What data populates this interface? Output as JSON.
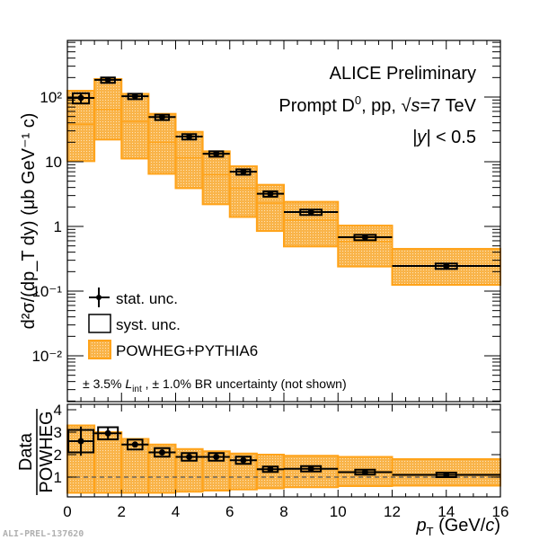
{
  "chart_data": [
    {
      "type": "scatter",
      "panel": "top",
      "title": "",
      "annotations": [
        "ALICE Preliminary",
        "Prompt D0, pp, √s=7 TeV",
        "|y| < 0.5",
        "± 3.5% L_int , ± 1.0% BR uncertainty (not shown)"
      ],
      "xlabel": "p_T (GeV/c)",
      "ylabel": "d²σ/(dp_T dy) (μb GeV⁻¹ c)",
      "yscale": "log",
      "xlim": [
        0,
        16
      ],
      "ylim": [
        0.003,
        700
      ],
      "ytick_labels": [
        "10⁻²",
        "10⁻¹",
        "1",
        "10",
        "10²"
      ],
      "ytick_values": [
        0.01,
        0.1,
        1,
        10,
        100
      ],
      "legend": {
        "placement": "bottom-left",
        "entries": [
          "stat. unc.",
          "syst. unc.",
          "POWHEG+PYTHIA6"
        ]
      },
      "bins": [
        [
          0,
          1
        ],
        [
          1,
          2
        ],
        [
          2,
          3
        ],
        [
          3,
          4
        ],
        [
          4,
          5
        ],
        [
          5,
          6
        ],
        [
          6,
          7
        ],
        [
          7,
          8
        ],
        [
          8,
          10
        ],
        [
          10,
          12
        ],
        [
          12,
          16
        ]
      ],
      "series": [
        {
          "name": "Data",
          "x": [
            0.5,
            1.5,
            2.5,
            3.5,
            4.5,
            5.5,
            6.5,
            7.5,
            9,
            11,
            14
          ],
          "values": [
            97,
            184,
            103,
            49,
            24.5,
            13.3,
            7.0,
            3.2,
            1.67,
            0.68,
            0.245
          ],
          "stat_rel": [
            0.17,
            0.04,
            0.03,
            0.03,
            0.03,
            0.03,
            0.03,
            0.04,
            0.04,
            0.05,
            0.08
          ],
          "syst_rel": [
            0.18,
            0.09,
            0.09,
            0.09,
            0.09,
            0.09,
            0.09,
            0.09,
            0.09,
            0.09,
            0.09
          ]
        },
        {
          "name": "POWHEG+PYTHIA6",
          "central": [
            38,
            64,
            42,
            20,
            11.5,
            6.3,
            3.9,
            2.3,
            1.25,
            0.58,
            0.245
          ],
          "upper": [
            125,
            190,
            112,
            55,
            29,
            14.5,
            8.5,
            4.4,
            2.4,
            1.03,
            0.45
          ],
          "lower": [
            10.2,
            22,
            11.2,
            6.5,
            3.9,
            2.2,
            1.4,
            0.85,
            0.49,
            0.24,
            0.125
          ]
        }
      ]
    },
    {
      "type": "scatter",
      "panel": "bottom",
      "xlabel": "p_T (GeV/c)",
      "ylabel": "Data / POWHEG",
      "xlim": [
        0,
        16
      ],
      "ylim": [
        0.1,
        4.2
      ],
      "xtick_labels": [
        "0",
        "2",
        "4",
        "6",
        "8",
        "10",
        "12",
        "14",
        "16"
      ],
      "ytick_labels": [
        "1",
        "2",
        "3",
        "4"
      ],
      "reference_line": 1,
      "series": [
        {
          "name": "Data/POWHEG",
          "x": [
            0.5,
            1.5,
            2.5,
            3.5,
            4.5,
            5.5,
            6.5,
            7.5,
            9,
            11,
            14
          ],
          "values": [
            2.6,
            2.95,
            2.45,
            2.1,
            1.9,
            1.9,
            1.75,
            1.35,
            1.37,
            1.22,
            1.1
          ],
          "stat_err": [
            0.65,
            0.25,
            0.12,
            0.1,
            0.08,
            0.08,
            0.07,
            0.05,
            0.05,
            0.05,
            0.07
          ],
          "syst_err": [
            0.5,
            0.27,
            0.22,
            0.19,
            0.17,
            0.17,
            0.16,
            0.12,
            0.12,
            0.11,
            0.1
          ]
        },
        {
          "name": "POWHEG band",
          "upper": [
            3.3,
            3.0,
            2.7,
            2.45,
            2.25,
            2.15,
            2.05,
            2.0,
            1.95,
            1.9,
            1.8
          ],
          "lower": [
            0.3,
            0.3,
            0.3,
            0.3,
            0.35,
            0.4,
            0.45,
            0.5,
            0.55,
            0.6,
            0.62
          ]
        }
      ]
    }
  ],
  "texts": {
    "alice": "ALICE Preliminary",
    "prompt_prefix": "Prompt D",
    "prompt_sup": "0",
    "prompt_mid": ", pp, ",
    "sqrt": "√",
    "s": "s",
    "energy": "=7 TeV",
    "y_abs": "|y|",
    "y_cut": " < 0.5",
    "lumi_prefix": "± 3.5% ",
    "lumi_L": "L",
    "lumi_sub": "int",
    "lumi_suffix": " , ± 1.0% BR uncertainty (not shown)",
    "legend_stat": "stat. unc.",
    "legend_syst": "syst. unc.",
    "legend_powheg": "POWHEG+PYTHIA6",
    "ratio_num": "Data",
    "ratio_den": "POWHEG",
    "xaxis_p": "p",
    "xaxis_T": "T",
    "xaxis_unit": " (GeV/",
    "xaxis_c": "c",
    "xaxis_close": ")",
    "watermark": "ALI-PREL-137620"
  },
  "colors": {
    "band_fill": "#fbbf5e",
    "band_edge": "#ffa31a",
    "data": "#000000",
    "refline": "#555555"
  }
}
